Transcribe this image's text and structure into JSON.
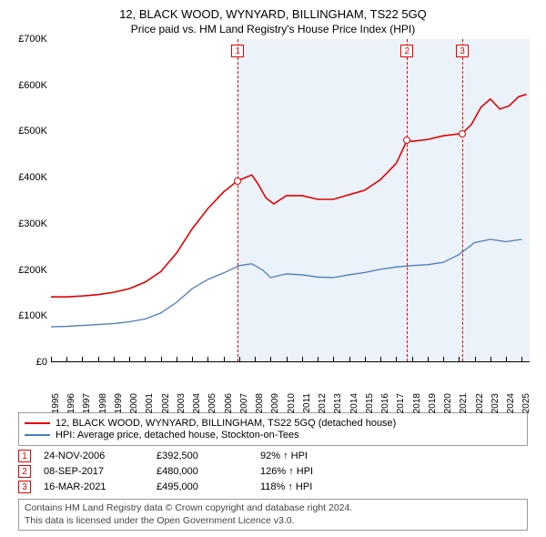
{
  "title": "12, BLACK WOOD, WYNYARD, BILLINGHAM, TS22 5GQ",
  "subtitle": "Price paid vs. HM Land Registry's House Price Index (HPI)",
  "chart": {
    "type": "line",
    "x_start": 1995,
    "x_end": 2025.5,
    "ylim": [
      0,
      700000
    ],
    "ytick_step": 100000,
    "ytick_prefix": "£",
    "ytick_suffix": "K",
    "x_ticks": [
      1995,
      1996,
      1997,
      1998,
      1999,
      2000,
      2001,
      2002,
      2003,
      2004,
      2005,
      2006,
      2007,
      2008,
      2009,
      2010,
      2011,
      2012,
      2013,
      2014,
      2015,
      2016,
      2017,
      2018,
      2019,
      2020,
      2021,
      2022,
      2023,
      2024,
      2025
    ],
    "background_color": "#ffffff",
    "shade_color": "rgba(70,130,200,0.10)",
    "marker_line_color": "#e00000",
    "marker_line_style": "dashed",
    "series": [
      {
        "name": "property",
        "color": "#e00000",
        "width": 1.6,
        "points": [
          [
            1995,
            140000
          ],
          [
            1996,
            140000
          ],
          [
            1997,
            142000
          ],
          [
            1998,
            145000
          ],
          [
            1999,
            150000
          ],
          [
            2000,
            158000
          ],
          [
            2001,
            172000
          ],
          [
            2002,
            195000
          ],
          [
            2003,
            235000
          ],
          [
            2004,
            288000
          ],
          [
            2005,
            332000
          ],
          [
            2006,
            368000
          ],
          [
            2006.9,
            392500
          ],
          [
            2007.3,
            398000
          ],
          [
            2007.8,
            405000
          ],
          [
            2008.2,
            385000
          ],
          [
            2008.7,
            355000
          ],
          [
            2009.2,
            342000
          ],
          [
            2010,
            360000
          ],
          [
            2011,
            360000
          ],
          [
            2012,
            352000
          ],
          [
            2013,
            352000
          ],
          [
            2014,
            362000
          ],
          [
            2015,
            372000
          ],
          [
            2016,
            395000
          ],
          [
            2017,
            430000
          ],
          [
            2017.69,
            480000
          ],
          [
            2018,
            478000
          ],
          [
            2019,
            482000
          ],
          [
            2020,
            490000
          ],
          [
            2021.21,
            495000
          ],
          [
            2021.8,
            515000
          ],
          [
            2022.4,
            552000
          ],
          [
            2023,
            570000
          ],
          [
            2023.6,
            548000
          ],
          [
            2024.2,
            555000
          ],
          [
            2024.8,
            575000
          ],
          [
            2025.3,
            580000
          ]
        ]
      },
      {
        "name": "hpi",
        "color": "#4a7cc0",
        "width": 1.3,
        "points": [
          [
            1995,
            75000
          ],
          [
            1996,
            76000
          ],
          [
            1997,
            78000
          ],
          [
            1998,
            80000
          ],
          [
            1999,
            82000
          ],
          [
            2000,
            86000
          ],
          [
            2001,
            92000
          ],
          [
            2002,
            105000
          ],
          [
            2003,
            128000
          ],
          [
            2004,
            158000
          ],
          [
            2005,
            178000
          ],
          [
            2006,
            192000
          ],
          [
            2007,
            208000
          ],
          [
            2007.8,
            212000
          ],
          [
            2008.5,
            198000
          ],
          [
            2009,
            182000
          ],
          [
            2010,
            190000
          ],
          [
            2011,
            188000
          ],
          [
            2012,
            183000
          ],
          [
            2013,
            182000
          ],
          [
            2014,
            188000
          ],
          [
            2015,
            193000
          ],
          [
            2016,
            200000
          ],
          [
            2017,
            205000
          ],
          [
            2018,
            208000
          ],
          [
            2019,
            210000
          ],
          [
            2020,
            215000
          ],
          [
            2021,
            232000
          ],
          [
            2022,
            258000
          ],
          [
            2023,
            265000
          ],
          [
            2024,
            260000
          ],
          [
            2025,
            265000
          ]
        ]
      }
    ],
    "markers": [
      {
        "num": "1",
        "x": 2006.9,
        "y": 392500
      },
      {
        "num": "2",
        "x": 2017.69,
        "y": 480000
      },
      {
        "num": "3",
        "x": 2021.21,
        "y": 495000
      }
    ]
  },
  "legend": {
    "items": [
      {
        "color": "#e00000",
        "label": "12, BLACK WOOD, WYNYARD, BILLINGHAM, TS22 5GQ (detached house)"
      },
      {
        "color": "#4a7cc0",
        "label": "HPI: Average price, detached house, Stockton-on-Tees"
      }
    ]
  },
  "events": [
    {
      "num": "1",
      "date": "24-NOV-2006",
      "price": "£392,500",
      "pct": "92% ↑ HPI"
    },
    {
      "num": "2",
      "date": "08-SEP-2017",
      "price": "£480,000",
      "pct": "126% ↑ HPI"
    },
    {
      "num": "3",
      "date": "16-MAR-2021",
      "price": "£495,000",
      "pct": "118% ↑ HPI"
    }
  ],
  "footer": {
    "line1": "Contains HM Land Registry data © Crown copyright and database right 2024.",
    "line2": "This data is licensed under the Open Government Licence v3.0."
  }
}
